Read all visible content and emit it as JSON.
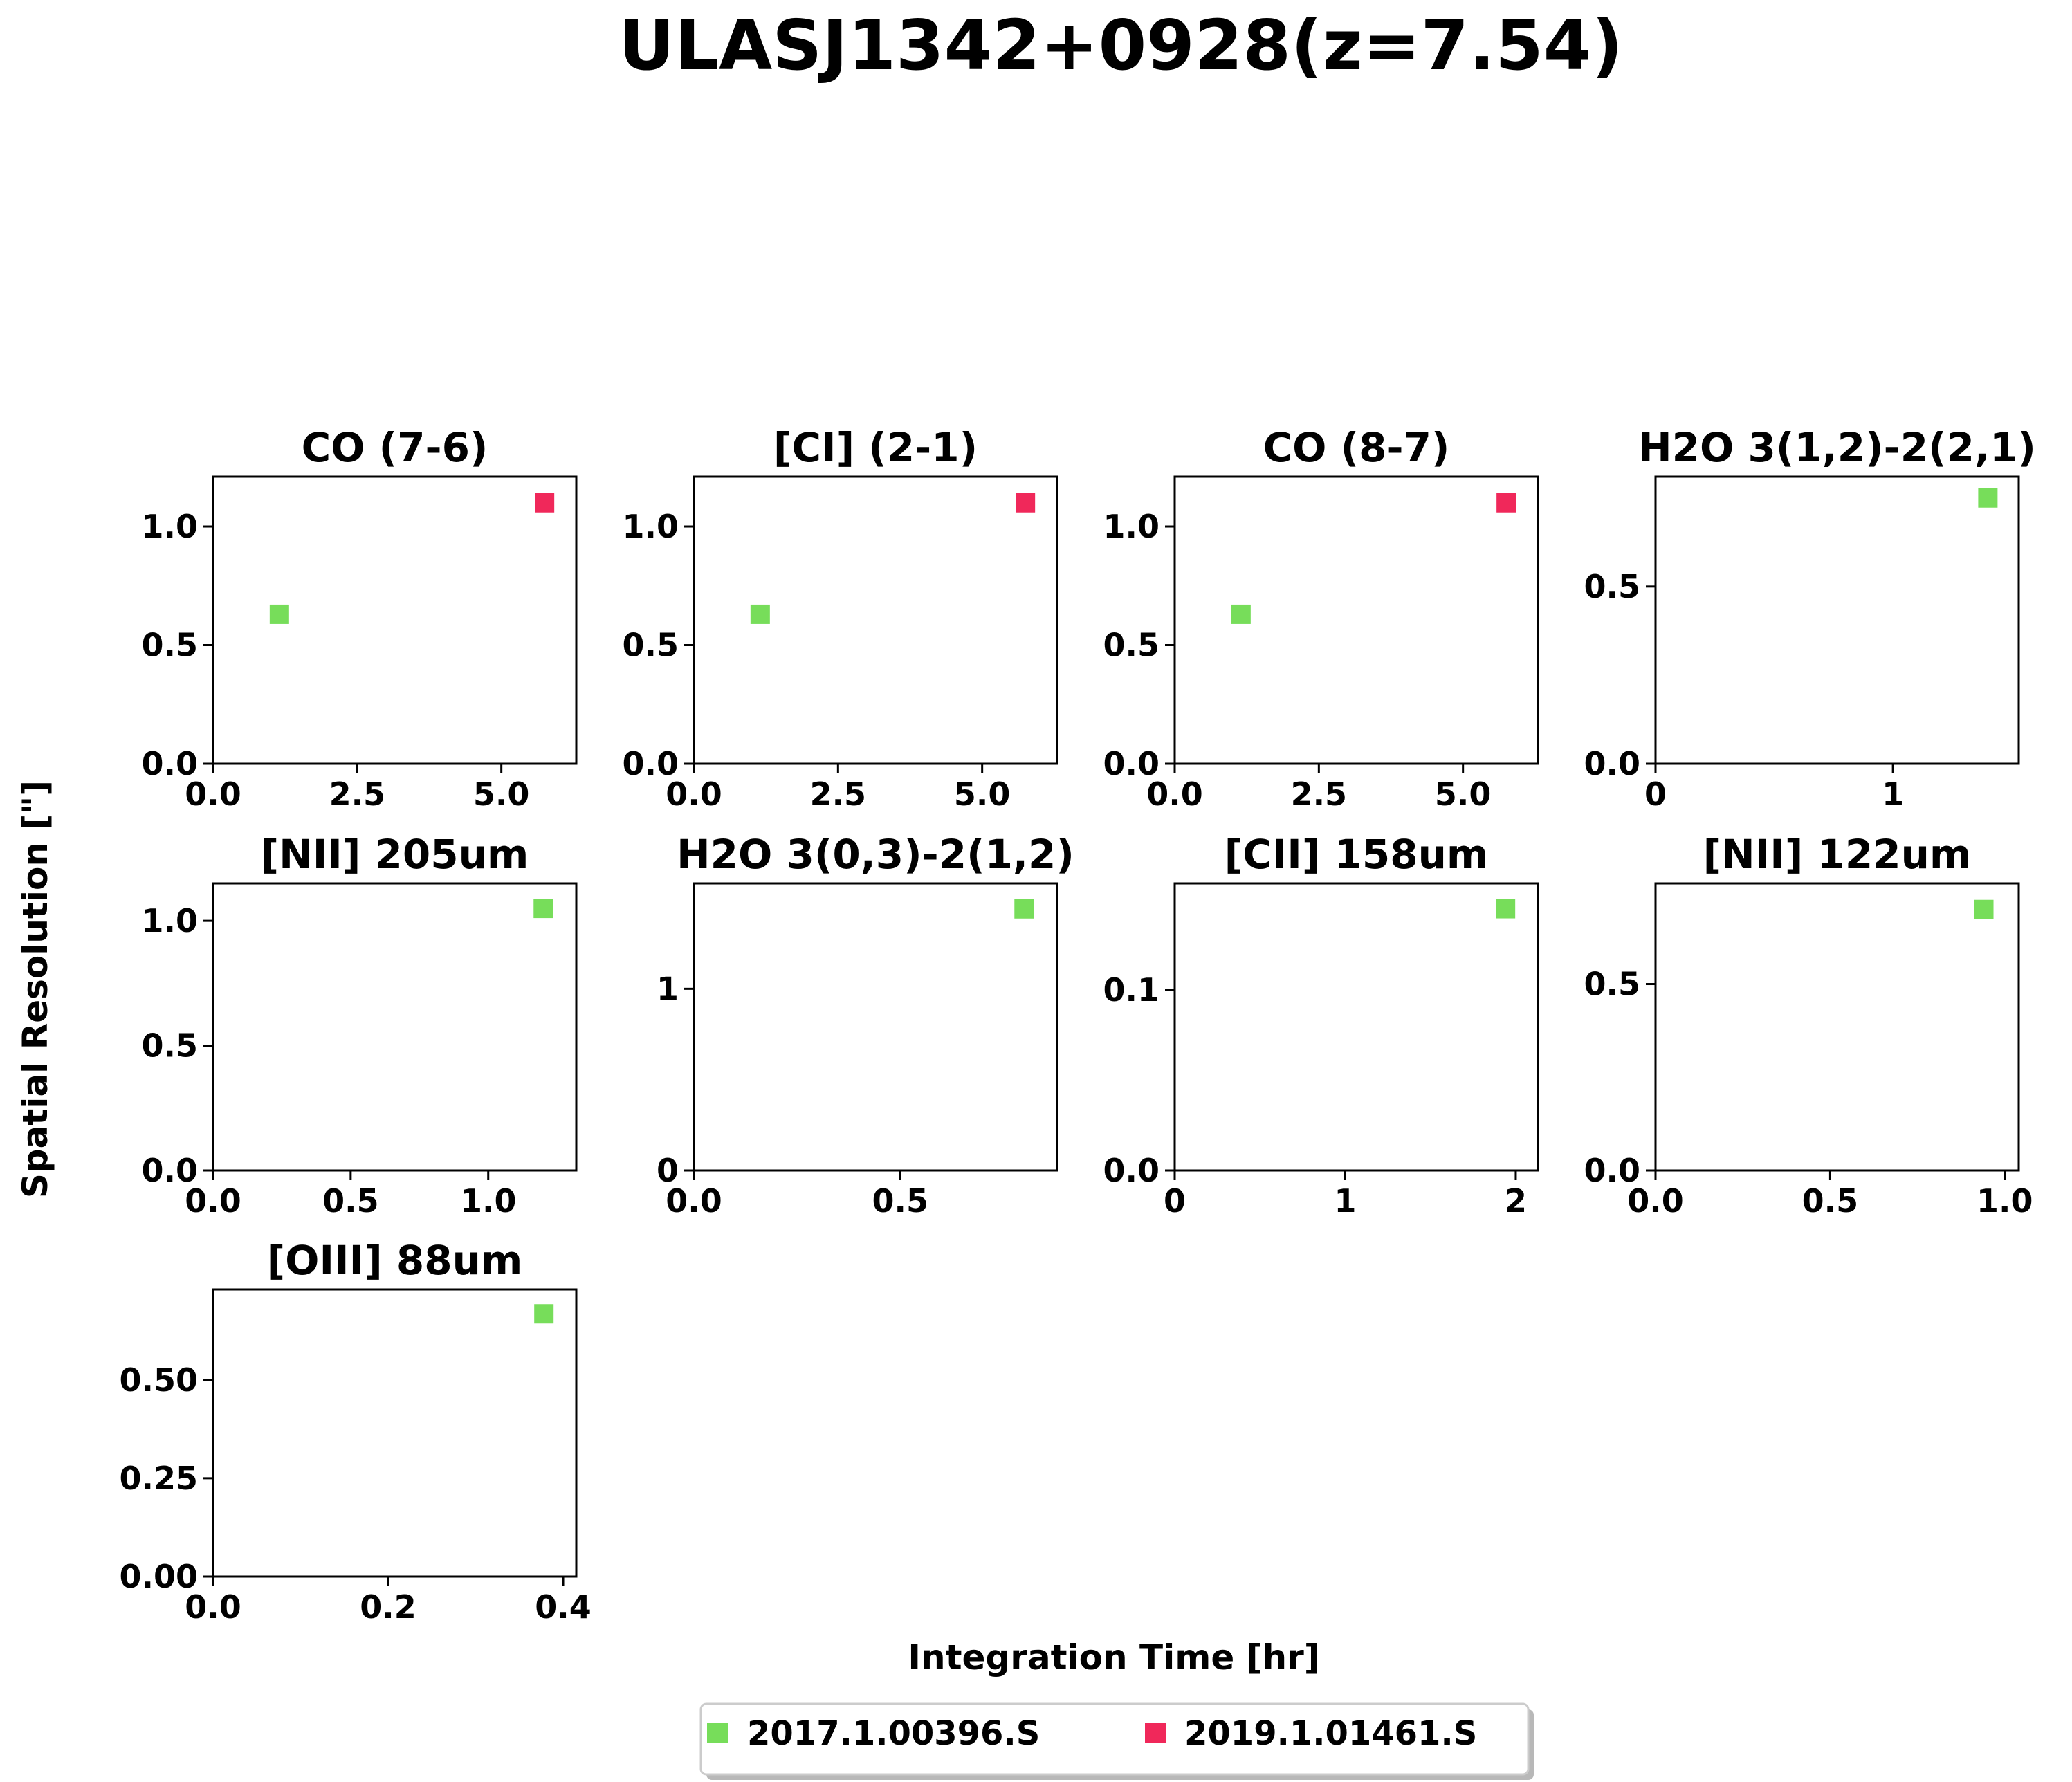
{
  "figure": {
    "title": "ULASJ1342+0928(z=7.54)",
    "xlabel": "Integration Time [hr]",
    "ylabel": "Spatial Resolution [\"]"
  },
  "legend": {
    "placement": "bottom-center",
    "entries": [
      {
        "label": "2017.1.00396.S",
        "color": "#77dd5a"
      },
      {
        "label": "2019.1.01461.S",
        "color": "#f0285a"
      }
    ]
  },
  "chart_data": [
    {
      "type": "scatter",
      "title": "CO (7-6)",
      "xlim": [
        0,
        6.3
      ],
      "ylim": [
        0,
        1.21
      ],
      "xticks": [
        {
          "v": 0,
          "t": "0.0"
        },
        {
          "v": 2.5,
          "t": "2.5"
        },
        {
          "v": 5,
          "t": "5.0"
        }
      ],
      "yticks": [
        {
          "v": 0,
          "t": "0.0"
        },
        {
          "v": 0.5,
          "t": "0.5"
        },
        {
          "v": 1,
          "t": "1.0"
        }
      ],
      "series": [
        {
          "name": "2017.1.00396.S",
          "color": "#77dd5a",
          "points": [
            {
              "x": 1.15,
              "y": 0.63
            }
          ]
        },
        {
          "name": "2019.1.01461.S",
          "color": "#f0285a",
          "points": [
            {
              "x": 5.75,
              "y": 1.1
            }
          ]
        }
      ]
    },
    {
      "type": "scatter",
      "title": "[CI] (2-1)",
      "xlim": [
        0,
        6.3
      ],
      "ylim": [
        0,
        1.21
      ],
      "xticks": [
        {
          "v": 0,
          "t": "0.0"
        },
        {
          "v": 2.5,
          "t": "2.5"
        },
        {
          "v": 5,
          "t": "5.0"
        }
      ],
      "yticks": [
        {
          "v": 0,
          "t": "0.0"
        },
        {
          "v": 0.5,
          "t": "0.5"
        },
        {
          "v": 1,
          "t": "1.0"
        }
      ],
      "series": [
        {
          "name": "2017.1.00396.S",
          "color": "#77dd5a",
          "points": [
            {
              "x": 1.15,
              "y": 0.63
            }
          ]
        },
        {
          "name": "2019.1.01461.S",
          "color": "#f0285a",
          "points": [
            {
              "x": 5.75,
              "y": 1.1
            }
          ]
        }
      ]
    },
    {
      "type": "scatter",
      "title": "CO (8-7)",
      "xlim": [
        0,
        6.3
      ],
      "ylim": [
        0,
        1.21
      ],
      "xticks": [
        {
          "v": 0,
          "t": "0.0"
        },
        {
          "v": 2.5,
          "t": "2.5"
        },
        {
          "v": 5,
          "t": "5.0"
        }
      ],
      "yticks": [
        {
          "v": 0,
          "t": "0.0"
        },
        {
          "v": 0.5,
          "t": "0.5"
        },
        {
          "v": 1,
          "t": "1.0"
        }
      ],
      "series": [
        {
          "name": "2017.1.00396.S",
          "color": "#77dd5a",
          "points": [
            {
              "x": 1.15,
              "y": 0.63
            }
          ]
        },
        {
          "name": "2019.1.01461.S",
          "color": "#f0285a",
          "points": [
            {
              "x": 5.75,
              "y": 1.1
            }
          ]
        }
      ]
    },
    {
      "type": "scatter",
      "title": "H2O 3(1,2)-2(2,1)",
      "xlim": [
        0,
        1.53
      ],
      "ylim": [
        0,
        0.81
      ],
      "xticks": [
        {
          "v": 0,
          "t": "0"
        },
        {
          "v": 1,
          "t": "1"
        }
      ],
      "yticks": [
        {
          "v": 0,
          "t": "0.0"
        },
        {
          "v": 0.5,
          "t": "0.5"
        }
      ],
      "series": [
        {
          "name": "2017.1.00396.S",
          "color": "#77dd5a",
          "points": [
            {
              "x": 1.4,
              "y": 0.75
            }
          ]
        }
      ]
    },
    {
      "type": "scatter",
      "title": "[NII] 205um",
      "xlim": [
        0,
        1.32
      ],
      "ylim": [
        0,
        1.15
      ],
      "xticks": [
        {
          "v": 0,
          "t": "0.0"
        },
        {
          "v": 0.5,
          "t": "0.5"
        },
        {
          "v": 1,
          "t": "1.0"
        }
      ],
      "yticks": [
        {
          "v": 0,
          "t": "0.0"
        },
        {
          "v": 0.5,
          "t": "0.5"
        },
        {
          "v": 1,
          "t": "1.0"
        }
      ],
      "series": [
        {
          "name": "2017.1.00396.S",
          "color": "#77dd5a",
          "points": [
            {
              "x": 1.2,
              "y": 1.05
            }
          ]
        }
      ]
    },
    {
      "type": "scatter",
      "title": "H2O 3(0,3)-2(1,2)",
      "xlim": [
        0,
        0.88
      ],
      "ylim": [
        0,
        1.58
      ],
      "xticks": [
        {
          "v": 0,
          "t": "0.0"
        },
        {
          "v": 0.5,
          "t": "0.5"
        }
      ],
      "yticks": [
        {
          "v": 0,
          "t": "0"
        },
        {
          "v": 1,
          "t": "1"
        }
      ],
      "series": [
        {
          "name": "2017.1.00396.S",
          "color": "#77dd5a",
          "points": [
            {
              "x": 0.8,
              "y": 1.44
            }
          ]
        }
      ]
    },
    {
      "type": "scatter",
      "title": "[CII] 158um",
      "xlim": [
        0,
        2.13
      ],
      "ylim": [
        0,
        0.159
      ],
      "xticks": [
        {
          "v": 0,
          "t": "0"
        },
        {
          "v": 1,
          "t": "1"
        },
        {
          "v": 2,
          "t": "2"
        }
      ],
      "yticks": [
        {
          "v": 0,
          "t": "0.0"
        },
        {
          "v": 0.1,
          "t": "0.1"
        }
      ],
      "series": [
        {
          "name": "2017.1.00396.S",
          "color": "#77dd5a",
          "points": [
            {
              "x": 1.94,
              "y": 0.145
            }
          ]
        }
      ]
    },
    {
      "type": "scatter",
      "title": "[NII] 122um",
      "xlim": [
        0,
        1.04
      ],
      "ylim": [
        0,
        0.77
      ],
      "xticks": [
        {
          "v": 0,
          "t": "0.0"
        },
        {
          "v": 0.5,
          "t": "0.5"
        },
        {
          "v": 1,
          "t": "1.0"
        }
      ],
      "yticks": [
        {
          "v": 0,
          "t": "0.0"
        },
        {
          "v": 0.5,
          "t": "0.5"
        }
      ],
      "series": [
        {
          "name": "2017.1.00396.S",
          "color": "#77dd5a",
          "points": [
            {
              "x": 0.94,
              "y": 0.7
            }
          ]
        }
      ]
    },
    {
      "type": "scatter",
      "title": "[OIII] 88um",
      "xlim": [
        0,
        0.415
      ],
      "ylim": [
        0,
        0.73
      ],
      "xticks": [
        {
          "v": 0,
          "t": "0.0"
        },
        {
          "v": 0.2,
          "t": "0.2"
        },
        {
          "v": 0.4,
          "t": "0.4"
        }
      ],
      "yticks": [
        {
          "v": 0,
          "t": "0.00"
        },
        {
          "v": 0.25,
          "t": "0.25"
        },
        {
          "v": 0.5,
          "t": "0.50"
        }
      ],
      "series": [
        {
          "name": "2017.1.00396.S",
          "color": "#77dd5a",
          "points": [
            {
              "x": 0.378,
              "y": 0.668
            }
          ]
        }
      ]
    }
  ]
}
